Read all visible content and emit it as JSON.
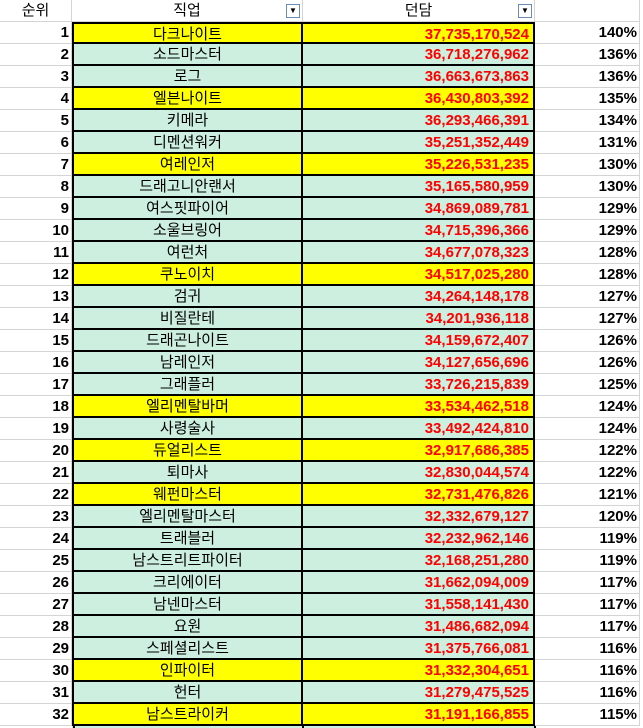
{
  "header": {
    "rank": "순위",
    "job": "직업",
    "damage": "던담",
    "pct": ""
  },
  "icons": {
    "job_filter": "filter-dropdown-icon",
    "damage_filter": "sort-filter-icon"
  },
  "colors": {
    "highlight": "#ffff00",
    "normal": "#ccefe0",
    "damage_text": "#ff0000"
  },
  "rows": [
    {
      "rank": "1",
      "job": "다크나이트",
      "damage": "37,735,170,524",
      "pct": "140%",
      "hl": true
    },
    {
      "rank": "2",
      "job": "소드마스터",
      "damage": "36,718,276,962",
      "pct": "136%",
      "hl": false
    },
    {
      "rank": "3",
      "job": "로그",
      "damage": "36,663,673,863",
      "pct": "136%",
      "hl": false
    },
    {
      "rank": "4",
      "job": "엘븐나이트",
      "damage": "36,430,803,392",
      "pct": "135%",
      "hl": true
    },
    {
      "rank": "5",
      "job": "키메라",
      "damage": "36,293,466,391",
      "pct": "134%",
      "hl": false
    },
    {
      "rank": "6",
      "job": "디멘션워커",
      "damage": "35,251,352,449",
      "pct": "131%",
      "hl": false
    },
    {
      "rank": "7",
      "job": "여레인저",
      "damage": "35,226,531,235",
      "pct": "130%",
      "hl": true
    },
    {
      "rank": "8",
      "job": "드래고니안랜서",
      "damage": "35,165,580,959",
      "pct": "130%",
      "hl": false
    },
    {
      "rank": "9",
      "job": "여스핏파이어",
      "damage": "34,869,089,781",
      "pct": "129%",
      "hl": false
    },
    {
      "rank": "10",
      "job": "소울브링어",
      "damage": "34,715,396,366",
      "pct": "129%",
      "hl": false
    },
    {
      "rank": "11",
      "job": "여런처",
      "damage": "34,677,078,323",
      "pct": "128%",
      "hl": false
    },
    {
      "rank": "12",
      "job": "쿠노이치",
      "damage": "34,517,025,280",
      "pct": "128%",
      "hl": true
    },
    {
      "rank": "13",
      "job": "검귀",
      "damage": "34,264,148,178",
      "pct": "127%",
      "hl": false
    },
    {
      "rank": "14",
      "job": "비질란테",
      "damage": "34,201,936,118",
      "pct": "127%",
      "hl": false
    },
    {
      "rank": "15",
      "job": "드래곤나이트",
      "damage": "34,159,672,407",
      "pct": "126%",
      "hl": false
    },
    {
      "rank": "16",
      "job": "남레인저",
      "damage": "34,127,656,696",
      "pct": "126%",
      "hl": false
    },
    {
      "rank": "17",
      "job": "그래플러",
      "damage": "33,726,215,839",
      "pct": "125%",
      "hl": false
    },
    {
      "rank": "18",
      "job": "엘리멘탈바머",
      "damage": "33,534,462,518",
      "pct": "124%",
      "hl": true
    },
    {
      "rank": "19",
      "job": "사령술사",
      "damage": "33,492,424,810",
      "pct": "124%",
      "hl": false
    },
    {
      "rank": "20",
      "job": "듀얼리스트",
      "damage": "32,917,686,385",
      "pct": "122%",
      "hl": true
    },
    {
      "rank": "21",
      "job": "퇴마사",
      "damage": "32,830,044,574",
      "pct": "122%",
      "hl": false
    },
    {
      "rank": "22",
      "job": "웨펀마스터",
      "damage": "32,731,476,826",
      "pct": "121%",
      "hl": true
    },
    {
      "rank": "23",
      "job": "엘리멘탈마스터",
      "damage": "32,332,679,127",
      "pct": "120%",
      "hl": false
    },
    {
      "rank": "24",
      "job": "트래블러",
      "damage": "32,232,962,146",
      "pct": "119%",
      "hl": false
    },
    {
      "rank": "25",
      "job": "남스트리트파이터",
      "damage": "32,168,251,280",
      "pct": "119%",
      "hl": false
    },
    {
      "rank": "26",
      "job": "크리에이터",
      "damage": "31,662,094,009",
      "pct": "117%",
      "hl": false
    },
    {
      "rank": "27",
      "job": "남넨마스터",
      "damage": "31,558,141,430",
      "pct": "117%",
      "hl": false
    },
    {
      "rank": "28",
      "job": "요원",
      "damage": "31,486,682,094",
      "pct": "117%",
      "hl": false
    },
    {
      "rank": "29",
      "job": "스페셜리스트",
      "damage": "31,375,766,081",
      "pct": "116%",
      "hl": false
    },
    {
      "rank": "30",
      "job": "인파이터",
      "damage": "31,332,304,651",
      "pct": "116%",
      "hl": true
    },
    {
      "rank": "31",
      "job": "헌터",
      "damage": "31,279,475,525",
      "pct": "116%",
      "hl": false
    },
    {
      "rank": "32",
      "job": "남스트라이커",
      "damage": "31,191,166,855",
      "pct": "115%",
      "hl": true
    }
  ]
}
